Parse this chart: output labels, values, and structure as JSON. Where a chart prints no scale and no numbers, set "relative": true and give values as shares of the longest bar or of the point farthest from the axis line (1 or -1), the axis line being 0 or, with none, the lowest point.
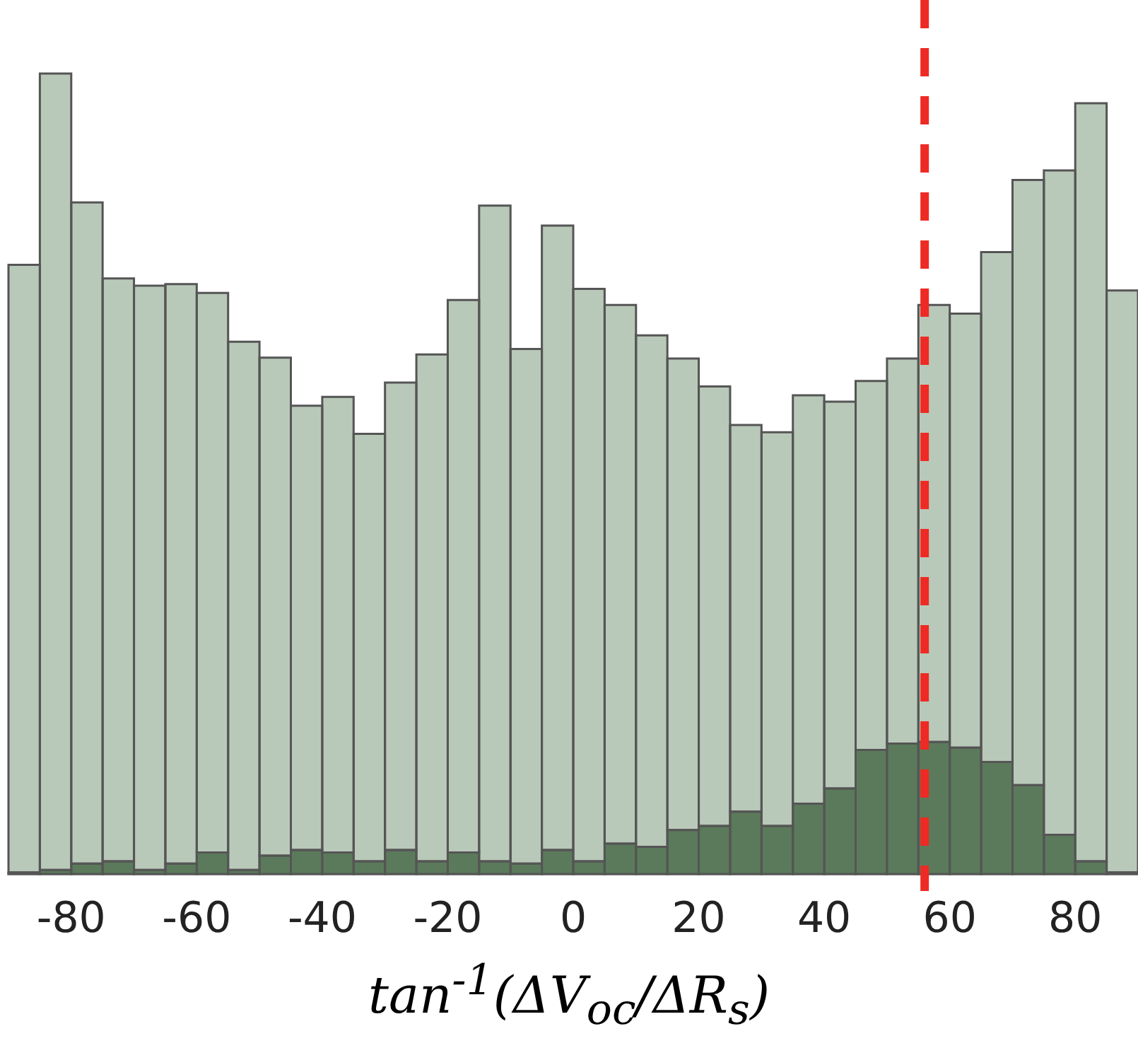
{
  "chart_data": {
    "type": "bar",
    "xlabel": "tan$^{-1}$(ΔV$_{oc}$/ΔR$_{s}$)",
    "relative": true,
    "stacked": true,
    "x": [
      -87.5,
      -82.5,
      -77.5,
      -72.5,
      -67.5,
      -62.5,
      -57.5,
      -52.5,
      -47.5,
      -42.5,
      -37.5,
      -32.5,
      -27.5,
      -22.5,
      -17.5,
      -12.5,
      -7.5,
      -2.5,
      2.5,
      7.5,
      12.5,
      17.5,
      22.5,
      27.5,
      32.5,
      37.5,
      42.5,
      47.5,
      52.5,
      57.5,
      62.5,
      67.5,
      72.5,
      77.5,
      82.5,
      87.5
    ],
    "series": [
      {
        "color": "#5b7a5b",
        "values": [
          0.002,
          0.005,
          0.013,
          0.016,
          0.005,
          0.013,
          0.027,
          0.005,
          0.023,
          0.03,
          0.027,
          0.016,
          0.03,
          0.016,
          0.027,
          0.016,
          0.013,
          0.03,
          0.016,
          0.038,
          0.034,
          0.055,
          0.06,
          0.078,
          0.06,
          0.088,
          0.107,
          0.155,
          0.163,
          0.165,
          0.158,
          0.14,
          0.111,
          0.049,
          0.016,
          0.002
        ]
      },
      {
        "color": "#b9c9b9",
        "values": [
          0.759,
          0.995,
          0.826,
          0.728,
          0.73,
          0.724,
          0.699,
          0.66,
          0.622,
          0.555,
          0.569,
          0.534,
          0.584,
          0.633,
          0.69,
          0.819,
          0.643,
          0.78,
          0.715,
          0.673,
          0.639,
          0.589,
          0.549,
          0.483,
          0.492,
          0.51,
          0.483,
          0.461,
          0.481,
          0.546,
          0.542,
          0.637,
          0.756,
          0.83,
          0.947,
          0.727
        ]
      }
    ],
    "xlim": [
      -90,
      90
    ],
    "xticks": [
      -80,
      -60,
      -40,
      -20,
      0,
      20,
      40,
      60,
      80
    ],
    "ref_lines": [
      {
        "axis": "x",
        "value": 56,
        "color": "#ee2a24",
        "line_style": "dashed"
      }
    ],
    "grid": false,
    "legend": false
  }
}
